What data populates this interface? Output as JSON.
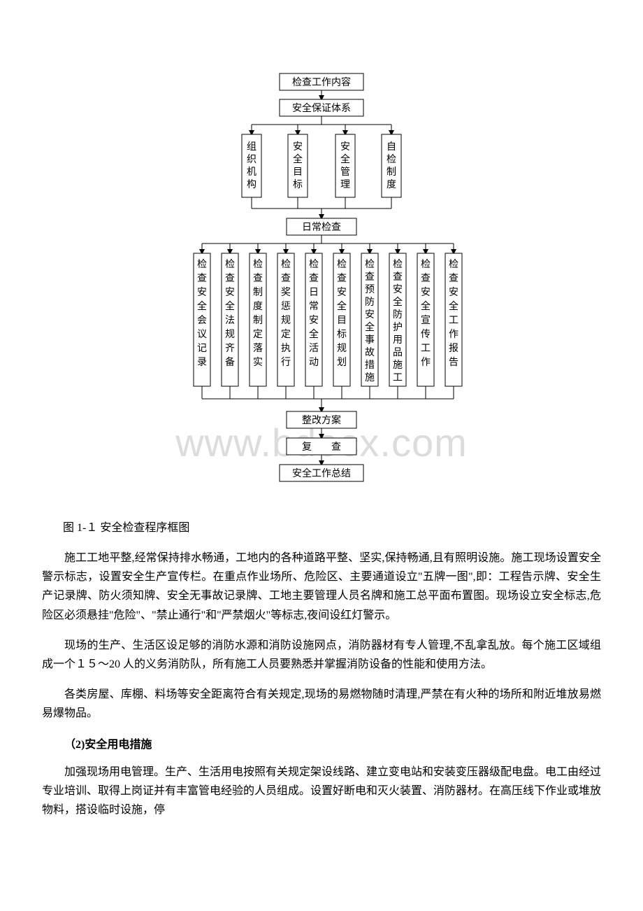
{
  "watermark": "www.bdocx.com",
  "diagram": {
    "type": "flowchart",
    "background_color": "#ffffff",
    "line_color": "#000000",
    "box_border_color": "#000000",
    "box_fill_color": "#ffffff",
    "font_family": "SimSun",
    "font_size": 14,
    "top_box1": "检查工作内容",
    "top_box2": "安全保证体系",
    "row2": [
      "组织机构",
      "安全目标",
      "安全管理",
      "自检制度"
    ],
    "mid_box": "日常检查",
    "row3": [
      "检查安全会议记录",
      "检查安全法规齐备",
      "检查制度制定落实",
      "检查奖惩规定执行",
      "检查日常安全活动",
      "检查安全目标规划",
      "检查预防安全事故措施",
      "检查安全防护用品施工",
      "检查安全宣传工作",
      "检查安全工作报告"
    ],
    "bottom1": "整改方案",
    "bottom2": "复　　查",
    "bottom3": "安全工作总结"
  },
  "caption": "图 1-１ 安全检查程序框图",
  "paragraphs": {
    "p1": "施工工地平整,经常保持排水畅通，工地内的各种道路平整、坚实,保持畅通,且有照明设施。施工现场设置安全警示标志，设置安全生产宣传栏。在重点作业场所、危险区、主要通道设立\"五牌一图\",即：工程告示牌、安全生产记录牌、防火须知牌、安全无事故记录牌、工地主要管理人员名牌和施工总平面布置图。现场设立安全标志,危险区必须悬挂\"危险\"、\"禁止通行\"和\"严禁烟火\"等标志,夜间设红灯警示。",
    "p2": "现场的生产、生活区设足够的消防水源和消防设施网点，消防器材有专人管理,不乱拿乱放。每个施工区域组成一个１５～20 人的义务消防队，所有施工人员要熟悉并掌握消防设备的性能和使用方法。",
    "p3": "各类房屋、库棚、料场等安全距离符合有关规定,现场的易燃物随时清理,严禁在有火种的场所和附近堆放易燃易爆物品。"
  },
  "heading2": "（2)安全用电措施",
  "paragraphs2": {
    "p4": "加强现场用电管理。生产、生活用电按照有关规定架设线路、建立变电站和安装变压器级配电盘。电工由经过专业培训、取得上岗证并有丰富管电经验的人员组成。设置好断电和灭火装置、消防器材。在高压线下作业或堆放物料，搭设临时设施，停"
  }
}
